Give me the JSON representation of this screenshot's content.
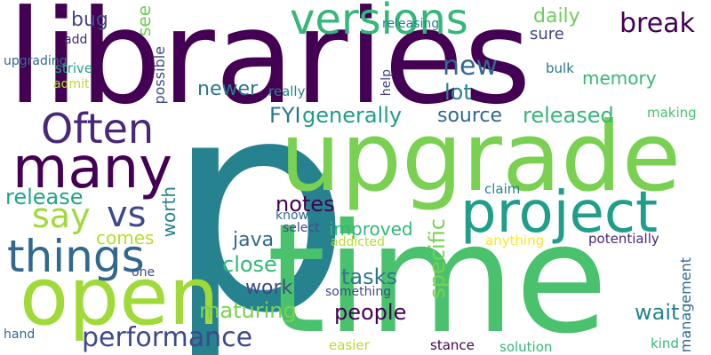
{
  "palette": {
    "dark_purple": "#440154",
    "indigo": "#482878",
    "slate_blue": "#3e4a89",
    "steel_blue": "#31688e",
    "teal": "#26828e",
    "sea_green": "#1f9e89",
    "green": "#35b779",
    "light_green": "#6ece58",
    "lime": "#b5de2b",
    "yellow": "#fde725"
  },
  "words": [
    {
      "text": "libraries",
      "color": "#440154"
    },
    {
      "text": "p",
      "color": "#26828e"
    },
    {
      "text": "upgrade",
      "color": "#7ad151"
    },
    {
      "text": "time",
      "color": "#4ac16d"
    },
    {
      "text": "project",
      "color": "#1f9e89"
    },
    {
      "text": "open",
      "color": "#a0da39"
    },
    {
      "text": "many",
      "color": "#440154"
    },
    {
      "text": "versions",
      "color": "#35b779"
    },
    {
      "text": "Often",
      "color": "#482878"
    },
    {
      "text": "things",
      "color": "#31688e"
    },
    {
      "text": "performance",
      "color": "#3e4a89"
    },
    {
      "text": "say",
      "color": "#a0da39"
    },
    {
      "text": "vs",
      "color": "#3e4a89"
    },
    {
      "text": "break",
      "color": "#440154"
    },
    {
      "text": "new",
      "color": "#31688e"
    },
    {
      "text": "lot",
      "color": "#26828e"
    },
    {
      "text": "released",
      "color": "#35b779"
    },
    {
      "text": "source",
      "color": "#31688e"
    },
    {
      "text": "FYI",
      "color": "#2a788e"
    },
    {
      "text": "generally",
      "color": "#1f9e89"
    },
    {
      "text": "bug",
      "color": "#3e4a89"
    },
    {
      "text": "see",
      "color": "#6ece58"
    },
    {
      "text": "newer",
      "color": "#2a788e"
    },
    {
      "text": "daily",
      "color": "#6ece58"
    },
    {
      "text": "sure",
      "color": "#414487"
    },
    {
      "text": "memory",
      "color": "#35b779"
    },
    {
      "text": "release",
      "color": "#21a585"
    },
    {
      "text": "comes",
      "color": "#b5de2b"
    },
    {
      "text": "notes",
      "color": "#440154"
    },
    {
      "text": "improved",
      "color": "#35b779"
    },
    {
      "text": "java",
      "color": "#31688e"
    },
    {
      "text": "close",
      "color": "#35b779"
    },
    {
      "text": "tasks",
      "color": "#2a788e"
    },
    {
      "text": "work",
      "color": "#3e4a89"
    },
    {
      "text": "maturing",
      "color": "#7ad151"
    },
    {
      "text": "people",
      "color": "#440154"
    },
    {
      "text": "wait",
      "color": "#26828e"
    },
    {
      "text": "specific",
      "color": "#7ad151"
    },
    {
      "text": "worth",
      "color": "#26828e"
    },
    {
      "text": "management",
      "color": "#31688e"
    },
    {
      "text": "potentially",
      "color": "#482878"
    },
    {
      "text": "upgrading",
      "color": "#31688e"
    },
    {
      "text": "add",
      "color": "#482878"
    },
    {
      "text": "strive",
      "color": "#21a585"
    },
    {
      "text": "admit",
      "color": "#b5de2b"
    },
    {
      "text": "possible",
      "color": "#3e4a89"
    },
    {
      "text": "help",
      "color": "#414487"
    },
    {
      "text": "releasing",
      "color": "#26828e"
    },
    {
      "text": "really",
      "color": "#26828e"
    },
    {
      "text": "bulk",
      "color": "#2a788e"
    },
    {
      "text": "making",
      "color": "#4ac16d"
    },
    {
      "text": "claim",
      "color": "#26828e"
    },
    {
      "text": "know",
      "color": "#31688e"
    },
    {
      "text": "select",
      "color": "#3e4a89"
    },
    {
      "text": "addicted",
      "color": "#b5de2b"
    },
    {
      "text": "anything",
      "color": "#fde725"
    },
    {
      "text": "one",
      "color": "#3e4a89"
    },
    {
      "text": "something",
      "color": "#3e4a89"
    },
    {
      "text": "hand",
      "color": "#31688e"
    },
    {
      "text": "easier",
      "color": "#b5de2b"
    },
    {
      "text": "stance",
      "color": "#440154"
    },
    {
      "text": "solution",
      "color": "#35b779"
    },
    {
      "text": "kind",
      "color": "#35b779"
    }
  ]
}
